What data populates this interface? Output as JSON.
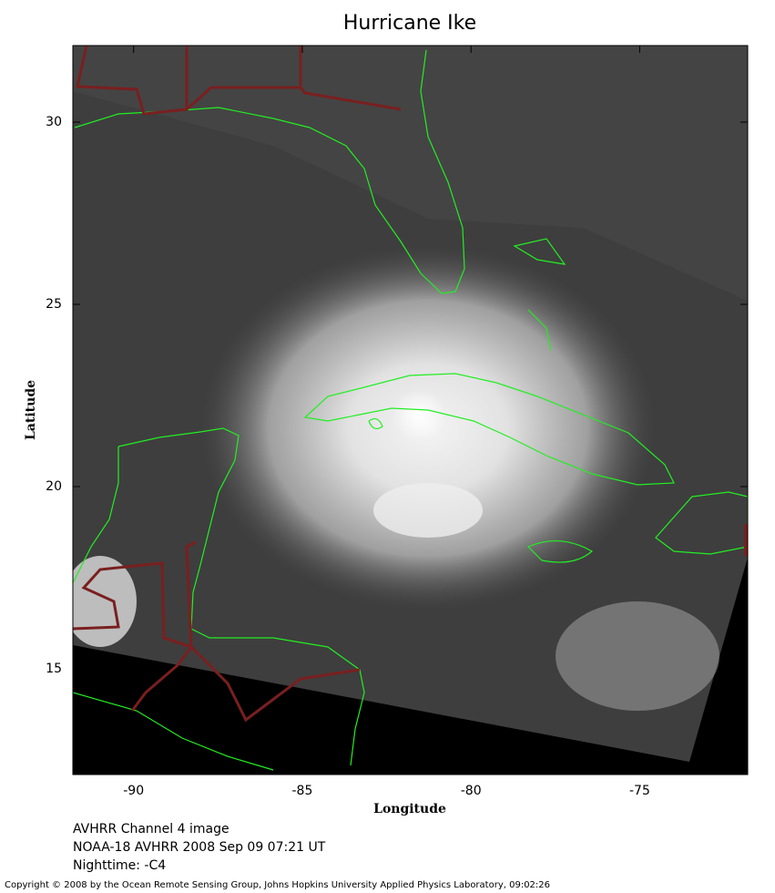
{
  "chart_data": {
    "type": "map",
    "title": "Hurricane Ike",
    "xlabel": "Longitude",
    "ylabel": "Latitude",
    "xlim": [
      -91.8,
      -71.8
    ],
    "ylim": [
      12.1,
      32.1
    ],
    "xticks": [
      -90,
      -85,
      -80,
      -75
    ],
    "yticks": [
      15,
      20,
      25,
      30
    ],
    "annotations": [
      "AVHRR Channel 4 image",
      "NOAA-18 AVHRR 2008 Sep 09 07:21 UT",
      "Nighttime: -C4"
    ],
    "copyright": "Copyright © 2008 by the Ocean Remote Sensing Group, Johns Hopkins University Applied Physics Laboratory, 09:02:26"
  }
}
